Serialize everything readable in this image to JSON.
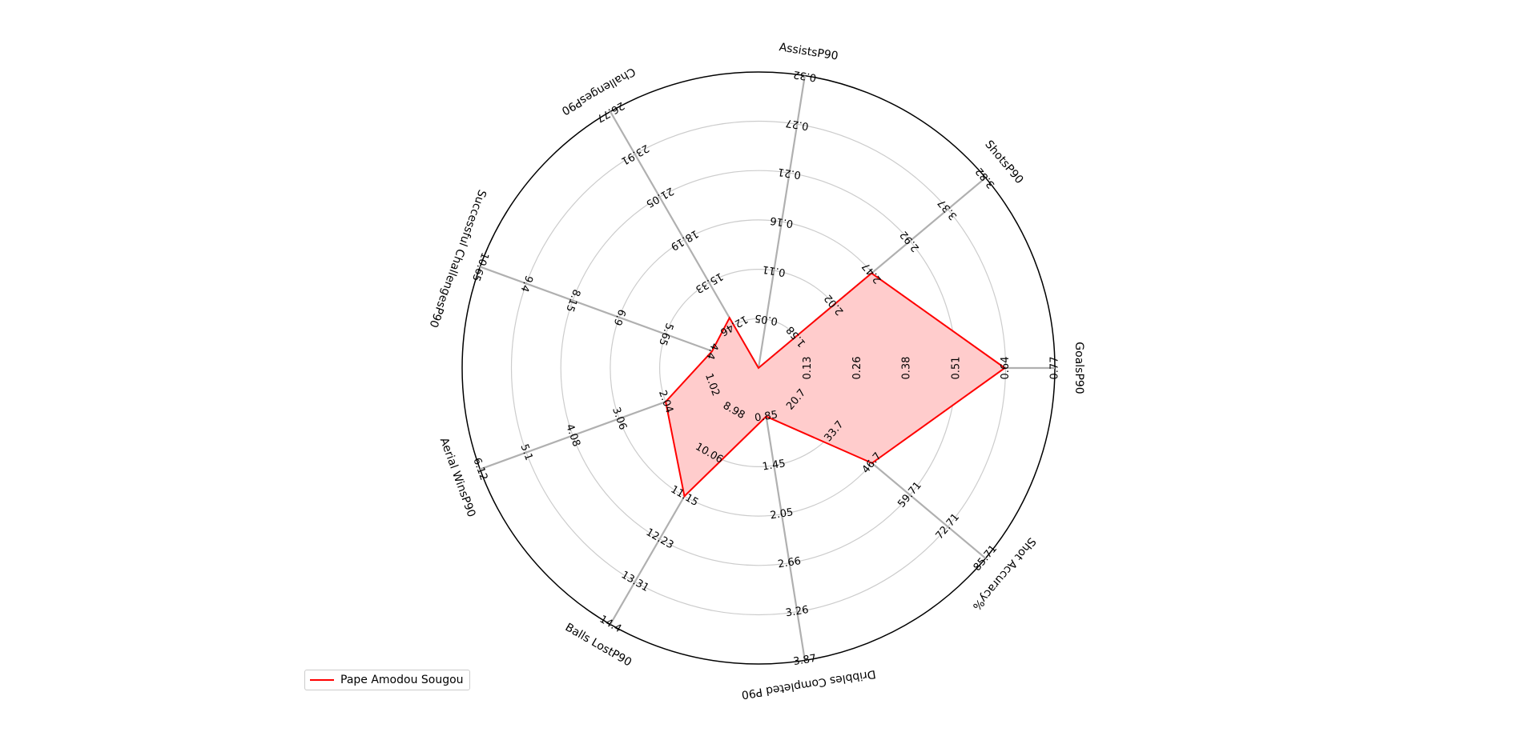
{
  "chart_data": {
    "type": "radar",
    "axes": [
      {
        "label": "GoalsP90",
        "ticks": [
          "0.13",
          "0.26",
          "0.38",
          "0.51",
          "0.64",
          "0.77"
        ],
        "min": 0,
        "max": 0.77
      },
      {
        "label": "ShotsP90",
        "ticks": [
          "1.58",
          "2.02",
          "2.47",
          "2.92",
          "3.37",
          "3.82"
        ],
        "min": 1.13,
        "max": 3.82
      },
      {
        "label": "AssistsP90",
        "ticks": [
          "0.05",
          "0.11",
          "0.16",
          "0.21",
          "0.27",
          "0.32"
        ],
        "min": 0,
        "max": 0.32
      },
      {
        "label": "ChallengesP90",
        "ticks": [
          "12.46",
          "15.33",
          "18.19",
          "21.05",
          "23.91",
          "26.77"
        ],
        "min": 9.6,
        "max": 26.77
      },
      {
        "label": "Successful ChallengesP90",
        "ticks": [
          "4.4",
          "5.65",
          "6.9",
          "8.15",
          "9.4",
          "10.65"
        ],
        "min": 3.15,
        "max": 10.65
      },
      {
        "label": "Aerial WinsP90",
        "ticks": [
          "1.02",
          "2.04",
          "3.06",
          "4.08",
          "5.1",
          "6.12"
        ],
        "min": 0,
        "max": 6.12
      },
      {
        "label": "Balls LostP90",
        "ticks": [
          "8.98",
          "10.06",
          "11.15",
          "12.23",
          "13.31",
          "14.4"
        ],
        "min": 7.9,
        "max": 14.4
      },
      {
        "label": "Dribbles Completed P90",
        "ticks": [
          "0.85",
          "1.45",
          "2.05",
          "2.66",
          "3.26",
          "3.87"
        ],
        "min": 0.25,
        "max": 3.87
      },
      {
        "label": "Shot Accuracy%",
        "ticks": [
          "20.7",
          "33.7",
          "46.7",
          "59.71",
          "72.71",
          "85.71"
        ],
        "min": 7.7,
        "max": 85.71
      }
    ],
    "series": [
      {
        "name": "Pape Amodou Sougou",
        "values": [
          0.64,
          2.47,
          0.0,
          12.96,
          4.4,
          2.04,
          11.15,
          0.85,
          46.7
        ],
        "color": "#ff0000",
        "fill": "#ffcccc"
      }
    ],
    "grid": true,
    "legend_position": "bottom-left"
  },
  "legend": {
    "label": "Pape Amodou Sougou"
  }
}
